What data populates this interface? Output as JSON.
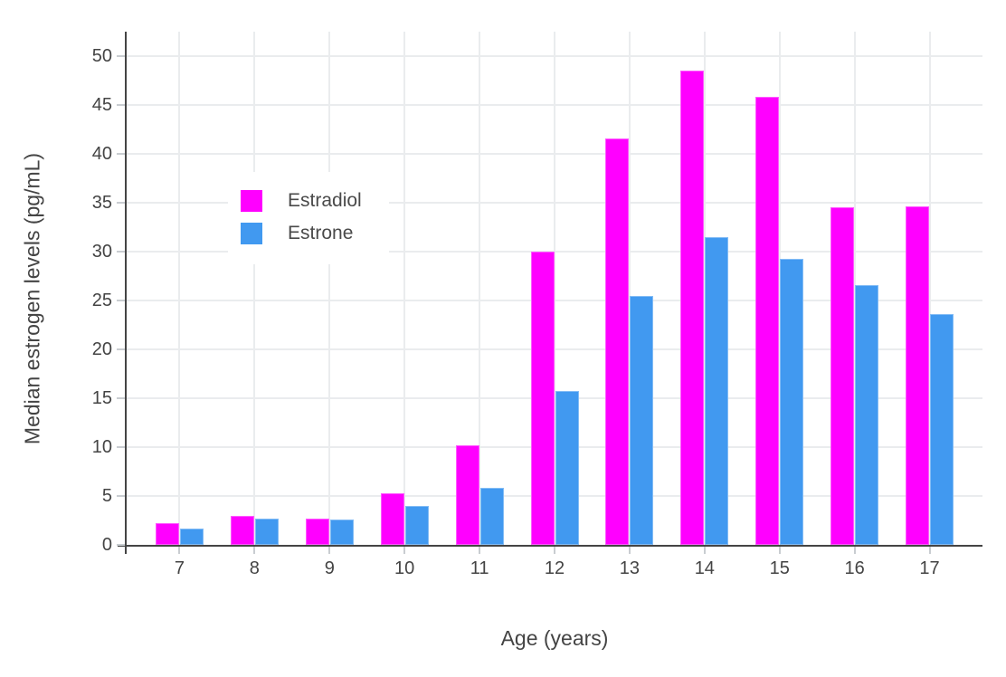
{
  "chart_data": {
    "type": "bar",
    "title": "",
    "xlabel": "Age (years)",
    "ylabel": "Median estrogen levels (pg/mL)",
    "categories": [
      "7",
      "8",
      "9",
      "10",
      "11",
      "12",
      "13",
      "14",
      "15",
      "16",
      "17"
    ],
    "series": [
      {
        "name": "Estradiol",
        "color": "#FF00FF",
        "values": [
          2.2,
          3.0,
          2.7,
          5.3,
          10.2,
          30.0,
          41.6,
          48.5,
          45.8,
          34.5,
          34.6
        ]
      },
      {
        "name": "Estrone",
        "color": "#4199F0",
        "values": [
          1.7,
          2.7,
          2.6,
          4.0,
          5.8,
          15.7,
          25.5,
          31.5,
          29.3,
          26.6,
          23.6
        ]
      }
    ],
    "ylim": [
      0,
      52.5
    ],
    "yticks": [
      0,
      5,
      10,
      15,
      20,
      25,
      30,
      35,
      40,
      45,
      50
    ],
    "grid": true,
    "legend_position": "inside-top-left"
  },
  "colors": {
    "background": "#FFFFFF",
    "axis": "#444444",
    "grid": "#EAECEE",
    "tick": "#C9CDD1",
    "estradiol": "#FF00FF",
    "estrone": "#4199F0"
  }
}
